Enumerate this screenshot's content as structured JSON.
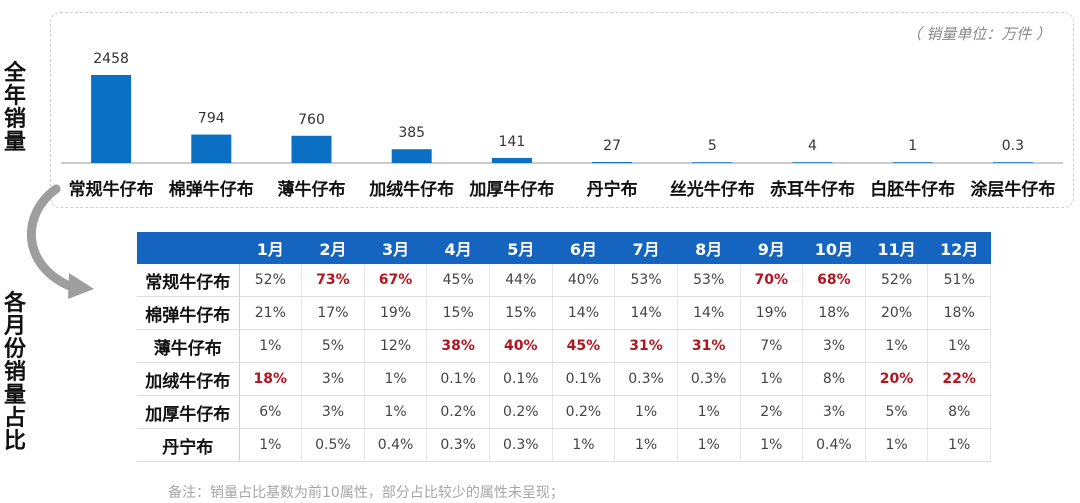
{
  "side_labels": {
    "top": "全年销量",
    "bottom": "各月份销量占比"
  },
  "unit_note": "（ 销量单位：万件 ）",
  "colors": {
    "bar": "#0b6fc4",
    "header_bg": "#1565c0",
    "highlight": "#b3151f"
  },
  "chart_data": {
    "type": "bar",
    "categories": [
      "常规牛仔布",
      "棉弹牛仔布",
      "薄牛仔布",
      "加绒牛仔布",
      "加厚牛仔布",
      "丹宁布",
      "丝光牛仔布",
      "赤耳牛仔布",
      "白胚牛仔布",
      "涂层牛仔布"
    ],
    "values": [
      2458,
      794,
      760,
      385,
      141,
      27,
      5,
      4,
      1,
      0.3
    ],
    "data_labels": [
      "2458",
      "794",
      "760",
      "385",
      "141",
      "27",
      "5",
      "4",
      "1",
      "0.3"
    ],
    "ylim": [
      0,
      2458
    ],
    "grid": false
  },
  "table": {
    "months": [
      "1月",
      "2月",
      "3月",
      "4月",
      "5月",
      "6月",
      "7月",
      "8月",
      "9月",
      "10月",
      "11月",
      "12月"
    ],
    "rows": [
      {
        "label": "常规牛仔布",
        "values": [
          "52%",
          "73%",
          "67%",
          "45%",
          "44%",
          "40%",
          "53%",
          "53%",
          "70%",
          "68%",
          "52%",
          "51%"
        ],
        "highlight": [
          1,
          2,
          8,
          9
        ]
      },
      {
        "label": "棉弹牛仔布",
        "values": [
          "21%",
          "17%",
          "19%",
          "15%",
          "15%",
          "14%",
          "14%",
          "14%",
          "19%",
          "18%",
          "20%",
          "18%"
        ],
        "highlight": []
      },
      {
        "label": "薄牛仔布",
        "values": [
          "1%",
          "5%",
          "12%",
          "38%",
          "40%",
          "45%",
          "31%",
          "31%",
          "7%",
          "3%",
          "1%",
          "1%"
        ],
        "highlight": [
          3,
          4,
          5,
          6,
          7
        ]
      },
      {
        "label": "加绒牛仔布",
        "values": [
          "18%",
          "3%",
          "1%",
          "0.1%",
          "0.1%",
          "0.1%",
          "0.3%",
          "0.3%",
          "1%",
          "8%",
          "20%",
          "22%"
        ],
        "highlight": [
          0,
          10,
          11
        ]
      },
      {
        "label": "加厚牛仔布",
        "values": [
          "6%",
          "3%",
          "1%",
          "0.2%",
          "0.2%",
          "0.2%",
          "1%",
          "1%",
          "2%",
          "3%",
          "5%",
          "8%"
        ],
        "highlight": []
      },
      {
        "label": "丹宁布",
        "values": [
          "1%",
          "0.5%",
          "0.4%",
          "0.3%",
          "0.3%",
          "1%",
          "1%",
          "1%",
          "1%",
          "0.4%",
          "1%",
          "1%"
        ],
        "highlight": []
      }
    ]
  },
  "footnote": "备注：销量占比基数为前10属性，部分占比较少的属性未呈现；"
}
